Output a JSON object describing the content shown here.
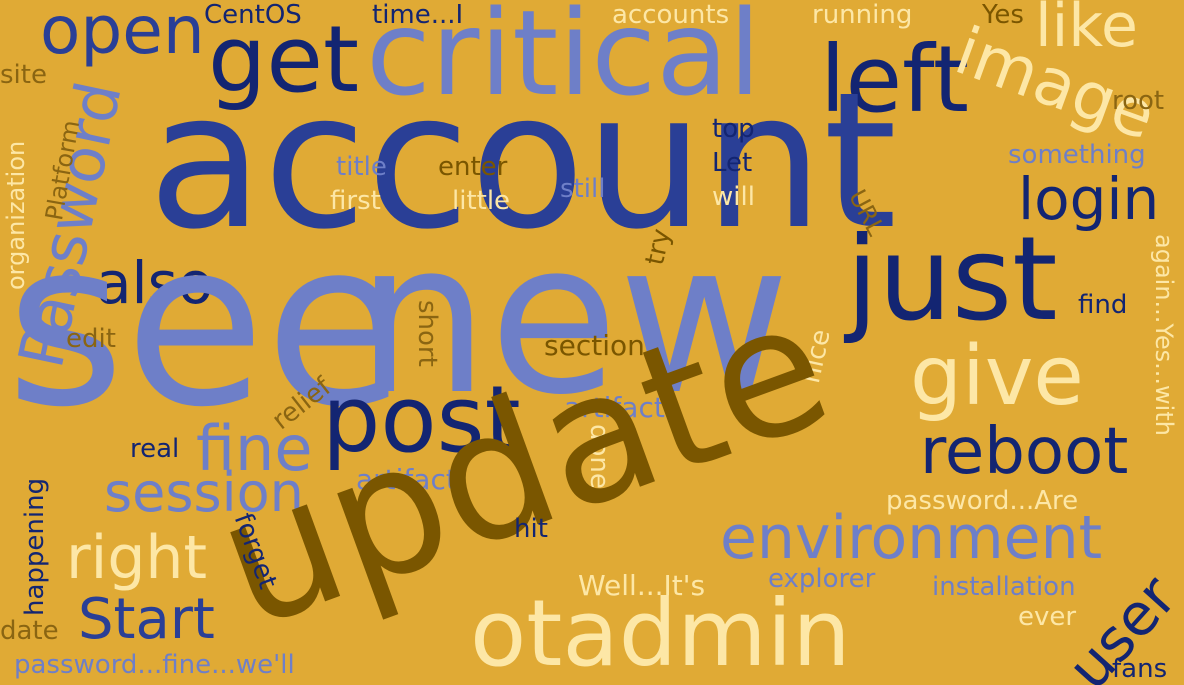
{
  "palette": {
    "background": "#e0aa35",
    "navy": "#132572",
    "blue": "#2a3f96",
    "periwinkle": "#6e7fc8",
    "brown": "#7a5600",
    "olive": "#8a6512",
    "cream": "#fde7a6"
  },
  "words": [
    {
      "id": "open",
      "text": "open"
    },
    {
      "id": "centos",
      "text": "CentOS"
    },
    {
      "id": "time-i",
      "text": "time...I"
    },
    {
      "id": "accounts",
      "text": "accounts"
    },
    {
      "id": "running",
      "text": "running"
    },
    {
      "id": "yes",
      "text": "Yes"
    },
    {
      "id": "like",
      "text": "like"
    },
    {
      "id": "get",
      "text": "get"
    },
    {
      "id": "critical",
      "text": "critical"
    },
    {
      "id": "left",
      "text": "left"
    },
    {
      "id": "image",
      "text": "image"
    },
    {
      "id": "site",
      "text": "site"
    },
    {
      "id": "root",
      "text": "root"
    },
    {
      "id": "account",
      "text": "account"
    },
    {
      "id": "top",
      "text": "top"
    },
    {
      "id": "let",
      "text": "Let"
    },
    {
      "id": "something",
      "text": "something"
    },
    {
      "id": "title",
      "text": "title"
    },
    {
      "id": "enter",
      "text": "enter"
    },
    {
      "id": "first",
      "text": "first"
    },
    {
      "id": "little",
      "text": "little"
    },
    {
      "id": "still",
      "text": "still"
    },
    {
      "id": "will",
      "text": "will"
    },
    {
      "id": "login",
      "text": "login"
    },
    {
      "id": "password",
      "text": "Password"
    },
    {
      "id": "platform",
      "text": "Platform"
    },
    {
      "id": "organization",
      "text": "organization"
    },
    {
      "id": "url",
      "text": "URL"
    },
    {
      "id": "also",
      "text": "also"
    },
    {
      "id": "see",
      "text": "see"
    },
    {
      "id": "new",
      "text": "new"
    },
    {
      "id": "just",
      "text": "just"
    },
    {
      "id": "try",
      "text": "try"
    },
    {
      "id": "again-yes-with",
      "text": "again...Yes...with"
    },
    {
      "id": "find",
      "text": "find"
    },
    {
      "id": "edit",
      "text": "edit"
    },
    {
      "id": "short",
      "text": "short"
    },
    {
      "id": "section",
      "text": "section"
    },
    {
      "id": "nice",
      "text": "nice"
    },
    {
      "id": "give",
      "text": "give"
    },
    {
      "id": "relief",
      "text": "relief"
    },
    {
      "id": "post",
      "text": "post"
    },
    {
      "id": "artifacts",
      "text": "artifacts"
    },
    {
      "id": "fine",
      "text": "fine"
    },
    {
      "id": "real",
      "text": "real"
    },
    {
      "id": "done",
      "text": "done"
    },
    {
      "id": "reboot",
      "text": "reboot"
    },
    {
      "id": "happening",
      "text": "happening"
    },
    {
      "id": "artifact",
      "text": "artifact"
    },
    {
      "id": "session",
      "text": "session"
    },
    {
      "id": "update",
      "text": "update"
    },
    {
      "id": "password-are",
      "text": "password...Are"
    },
    {
      "id": "hit",
      "text": "hit"
    },
    {
      "id": "environment",
      "text": "environment"
    },
    {
      "id": "right",
      "text": "right"
    },
    {
      "id": "forget",
      "text": "forget"
    },
    {
      "id": "user",
      "text": "user"
    },
    {
      "id": "well-its",
      "text": "Well...It's"
    },
    {
      "id": "explorer",
      "text": "explorer"
    },
    {
      "id": "installation",
      "text": "installation"
    },
    {
      "id": "start",
      "text": "Start"
    },
    {
      "id": "otadmin",
      "text": "otadmin"
    },
    {
      "id": "ever",
      "text": "ever"
    },
    {
      "id": "date",
      "text": "date"
    },
    {
      "id": "password-fine-well",
      "text": "password...fine...we'll"
    },
    {
      "id": "fans",
      "text": "fans"
    }
  ]
}
